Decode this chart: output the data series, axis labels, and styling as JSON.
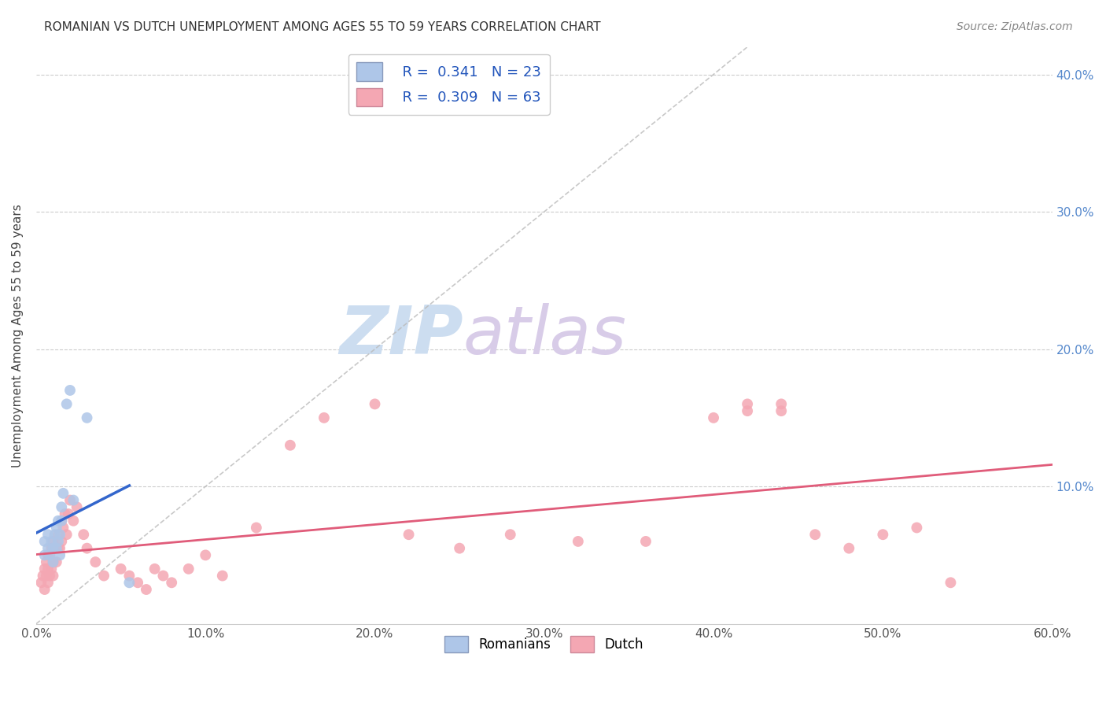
{
  "title": "ROMANIAN VS DUTCH UNEMPLOYMENT AMONG AGES 55 TO 59 YEARS CORRELATION CHART",
  "source": "Source: ZipAtlas.com",
  "ylabel": "Unemployment Among Ages 55 to 59 years",
  "xlim": [
    0.0,
    0.6
  ],
  "ylim": [
    0.0,
    0.42
  ],
  "xticks": [
    0.0,
    0.1,
    0.2,
    0.3,
    0.4,
    0.5,
    0.6
  ],
  "yticks": [
    0.1,
    0.2,
    0.3,
    0.4
  ],
  "ytick_labels": [
    "10.0%",
    "20.0%",
    "30.0%",
    "40.0%"
  ],
  "xtick_labels": [
    "0.0%",
    "10.0%",
    "20.0%",
    "30.0%",
    "40.0%",
    "50.0%",
    "60.0%"
  ],
  "background_color": "#ffffff",
  "grid_color": "#cccccc",
  "romanian_color": "#aec6e8",
  "dutch_color": "#f4a7b3",
  "romanian_line_color": "#3366cc",
  "dutch_line_color": "#e05c7a",
  "diagonal_color": "#bbbbbb",
  "watermark_zip_color": "#cce0f5",
  "watermark_atlas_color": "#d4c8e8",
  "legend_R1": "R =  0.341",
  "legend_N1": "N = 23",
  "legend_R2": "R =  0.309",
  "legend_N2": "N = 63",
  "legend_label1": "Romanians",
  "legend_label2": "Dutch",
  "romanian_x": [
    0.005,
    0.005,
    0.007,
    0.007,
    0.008,
    0.009,
    0.01,
    0.01,
    0.011,
    0.012,
    0.012,
    0.013,
    0.013,
    0.014,
    0.014,
    0.015,
    0.015,
    0.016,
    0.018,
    0.02,
    0.022,
    0.03,
    0.055
  ],
  "romanian_y": [
    0.05,
    0.06,
    0.055,
    0.065,
    0.05,
    0.06,
    0.045,
    0.055,
    0.065,
    0.055,
    0.07,
    0.06,
    0.075,
    0.05,
    0.065,
    0.075,
    0.085,
    0.095,
    0.16,
    0.17,
    0.09,
    0.15,
    0.03
  ],
  "dutch_x": [
    0.003,
    0.004,
    0.005,
    0.005,
    0.006,
    0.006,
    0.007,
    0.007,
    0.007,
    0.008,
    0.008,
    0.009,
    0.009,
    0.01,
    0.01,
    0.01,
    0.011,
    0.012,
    0.013,
    0.013,
    0.014,
    0.015,
    0.015,
    0.016,
    0.017,
    0.018,
    0.019,
    0.02,
    0.022,
    0.024,
    0.028,
    0.03,
    0.035,
    0.04,
    0.05,
    0.055,
    0.06,
    0.065,
    0.07,
    0.075,
    0.08,
    0.09,
    0.1,
    0.11,
    0.13,
    0.15,
    0.17,
    0.2,
    0.22,
    0.25,
    0.28,
    0.32,
    0.36,
    0.4,
    0.42,
    0.44,
    0.46,
    0.48,
    0.5,
    0.52,
    0.54,
    0.42,
    0.44
  ],
  "dutch_y": [
    0.03,
    0.035,
    0.04,
    0.025,
    0.035,
    0.045,
    0.03,
    0.04,
    0.05,
    0.035,
    0.05,
    0.04,
    0.055,
    0.035,
    0.045,
    0.06,
    0.055,
    0.045,
    0.055,
    0.065,
    0.055,
    0.06,
    0.075,
    0.07,
    0.08,
    0.065,
    0.08,
    0.09,
    0.075,
    0.085,
    0.065,
    0.055,
    0.045,
    0.035,
    0.04,
    0.035,
    0.03,
    0.025,
    0.04,
    0.035,
    0.03,
    0.04,
    0.05,
    0.035,
    0.07,
    0.13,
    0.15,
    0.16,
    0.065,
    0.055,
    0.065,
    0.06,
    0.06,
    0.15,
    0.16,
    0.16,
    0.065,
    0.055,
    0.065,
    0.07,
    0.03,
    0.155,
    0.155
  ],
  "marker_size": 100
}
